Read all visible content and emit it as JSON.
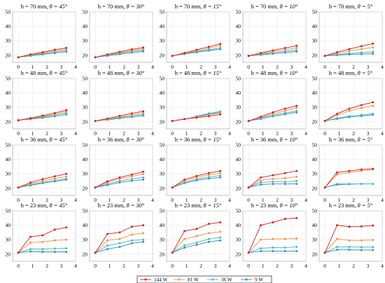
{
  "figure": {
    "series_colors": {
      "144 W": "#d7191c",
      "81 W": "#fd8d3c",
      "36 W": "#41b6c4",
      "9 W": "#2b8cbe"
    }
  },
  "legend": {
    "placement": "bottom-center",
    "items": [
      "144 W",
      "81 W",
      "36 W",
      "9 W"
    ]
  },
  "chart_data": {
    "type": "line",
    "layout": "small-multiples 4 rows x 5 columns",
    "x": [
      0,
      0.85,
      1.7,
      2.55,
      3.35
    ],
    "xlim": [
      -0.4,
      4
    ],
    "ylim": [
      15,
      50
    ],
    "xticks": [
      0,
      1,
      2,
      3,
      4
    ],
    "yticks": [
      20,
      30,
      40,
      50
    ],
    "grid": true,
    "series_names": [
      "144 W",
      "81 W",
      "36 W",
      "9 W"
    ],
    "panels": [
      {
        "title_h": "h = 70 mm, ",
        "title_theta": "θ = 45°",
        "series": [
          {
            "name": "144 W",
            "values": [
              18.5,
              20.5,
              22,
              23.8,
              25
            ]
          },
          {
            "name": "81 W",
            "values": [
              18.5,
              20.2,
              21.5,
              23,
              24
            ]
          },
          {
            "name": "36 W",
            "values": [
              18.5,
              19.8,
              21,
              22.3,
              23.2
            ]
          },
          {
            "name": "9 W",
            "values": [
              18.5,
              19.5,
              20.5,
              21.5,
              22.3
            ]
          }
        ]
      },
      {
        "title_h": "h = 70 mm, ",
        "title_theta": "θ = 30°",
        "series": [
          {
            "name": "144 W",
            "values": [
              18.5,
              20.5,
              22.3,
              24,
              25.3
            ]
          },
          {
            "name": "81 W",
            "values": [
              18.5,
              20.2,
              21.8,
              23.2,
              24.3
            ]
          },
          {
            "name": "36 W",
            "values": [
              18.5,
              19.8,
              21.2,
              22.5,
              23.5
            ]
          },
          {
            "name": "9 W",
            "values": [
              18.5,
              19.5,
              20.7,
              21.8,
              22.6
            ]
          }
        ]
      },
      {
        "title_h": "h = 70 mm, ",
        "title_theta": "θ = 15°",
        "series": [
          {
            "name": "144 W",
            "values": [
              19.5,
              21.5,
              23.7,
              25.8,
              27.8
            ]
          },
          {
            "name": "81 W",
            "values": [
              19.5,
              21.2,
              23,
              24.8,
              26.5
            ]
          },
          {
            "name": "36 W",
            "values": [
              19.5,
              21,
              22.5,
              23.8,
              25
            ]
          },
          {
            "name": "9 W",
            "values": [
              19.5,
              20.8,
              22,
              23.2,
              24.2
            ]
          }
        ]
      },
      {
        "title_h": "h = 70 mm, ",
        "title_theta": "θ = 10°",
        "series": [
          {
            "name": "144 W",
            "values": [
              19.5,
              21.5,
              23.3,
              25,
              26.5
            ]
          },
          {
            "name": "81 W",
            "values": [
              19.5,
              21,
              22.5,
              23.8,
              25
            ]
          },
          {
            "name": "36 W",
            "values": [
              19.5,
              20.5,
              21.7,
              22.7,
              23.5
            ]
          },
          {
            "name": "9 W",
            "values": [
              19.5,
              20.2,
              21,
              21.8,
              22.5
            ]
          }
        ]
      },
      {
        "title_h": "h = 70 mm, ",
        "title_theta": "θ = 5°",
        "series": [
          {
            "name": "144 W",
            "values": [
              19.5,
              22,
              24.2,
              26.2,
              28
            ]
          },
          {
            "name": "81 W",
            "values": [
              19.5,
              21.3,
              22.8,
              24.2,
              25.3
            ]
          },
          {
            "name": "36 W",
            "values": [
              19.5,
              20.5,
              21.2,
              21.8,
              22.3
            ]
          },
          {
            "name": "9 W",
            "values": [
              19.5,
              20,
              20.5,
              20.8,
              21
            ]
          }
        ]
      },
      {
        "title_h": "h = 48 mm, ",
        "title_theta": "θ = 45°",
        "series": [
          {
            "name": "144 W",
            "values": [
              21,
              22.5,
              24.2,
              26,
              28
            ]
          },
          {
            "name": "81 W",
            "values": [
              21,
              22.2,
              23.7,
              25.2,
              27
            ]
          },
          {
            "name": "36 W",
            "values": [
              21,
              22,
              23.2,
              24.5,
              26
            ]
          },
          {
            "name": "9 W",
            "values": [
              21,
              21.7,
              22.7,
              23.8,
              25
            ]
          }
        ]
      },
      {
        "title_h": "h = 48 mm, ",
        "title_theta": "θ = 30°",
        "series": [
          {
            "name": "144 W",
            "values": [
              20.5,
              22.2,
              24,
              25.8,
              27.2
            ]
          },
          {
            "name": "81 W",
            "values": [
              20.5,
              21.8,
              23.3,
              24.8,
              26
            ]
          },
          {
            "name": "36 W",
            "values": [
              20.5,
              21.5,
              22.8,
              24,
              25
            ]
          },
          {
            "name": "9 W",
            "values": [
              20.5,
              21.3,
              22.3,
              23.3,
              24.2
            ]
          }
        ]
      },
      {
        "title_h": "h = 48 mm, ",
        "title_theta": "θ = 15°",
        "series": [
          {
            "name": "144 W",
            "values": [
              20.5,
              21.8,
              22.8,
              23.8,
              25
            ]
          },
          {
            "name": "81 W",
            "values": [
              20.5,
              21.8,
              23.3,
              24.5,
              26
            ]
          },
          {
            "name": "36 W",
            "values": [
              20.5,
              21.8,
              23.8,
              25.8,
              27.2
            ]
          },
          {
            "name": "9 W",
            "values": [
              20.5,
              21.8,
              23.5,
              25.2,
              26.5
            ]
          }
        ]
      },
      {
        "title_h": "h = 48 mm, ",
        "title_theta": "θ = 10°",
        "series": [
          {
            "name": "144 W",
            "values": [
              20.5,
              23.5,
              26.5,
              29,
              31
            ]
          },
          {
            "name": "81 W",
            "values": [
              20.5,
              23,
              25.5,
              27.5,
              29.5
            ]
          },
          {
            "name": "36 W",
            "values": [
              20.5,
              22.5,
              24.5,
              26,
              27.5
            ]
          },
          {
            "name": "9 W",
            "values": [
              20.5,
              22,
              23.8,
              25.2,
              26.5
            ]
          }
        ]
      },
      {
        "title_h": "h = 48 mm, ",
        "title_theta": "θ = 5°",
        "series": [
          {
            "name": "144 W",
            "values": [
              20.5,
              25.5,
              29,
              31.5,
              33.5
            ]
          },
          {
            "name": "81 W",
            "values": [
              20.5,
              24.5,
              27.5,
              29.5,
              31
            ]
          },
          {
            "name": "36 W",
            "values": [
              20.5,
              22.5,
              23.8,
              24.8,
              25.5
            ]
          },
          {
            "name": "9 W",
            "values": [
              20.5,
              22,
              23.2,
              24,
              24.8
            ]
          }
        ]
      },
      {
        "title_h": "h = 36 mm, ",
        "title_theta": "θ = 45°",
        "series": [
          {
            "name": "144 W",
            "values": [
              20.5,
              24,
              26.3,
              28.3,
              30
            ]
          },
          {
            "name": "81 W",
            "values": [
              20.5,
              23.2,
              25,
              26.8,
              28
            ]
          },
          {
            "name": "36 W",
            "values": [
              20.5,
              22.5,
              24,
              25.5,
              26.5
            ]
          },
          {
            "name": "9 W",
            "values": [
              20.5,
              22,
              23.5,
              24.8,
              26
            ]
          }
        ]
      },
      {
        "title_h": "h = 36 mm, ",
        "title_theta": "θ = 30°",
        "series": [
          {
            "name": "144 W",
            "values": [
              20.5,
              24.8,
              27.5,
              29.5,
              31.5
            ]
          },
          {
            "name": "81 W",
            "values": [
              20.5,
              24,
              26.5,
              28.3,
              29.8
            ]
          },
          {
            "name": "36 W",
            "values": [
              20.5,
              23,
              25,
              26.5,
              27.5
            ]
          },
          {
            "name": "9 W",
            "values": [
              20.5,
              22.2,
              24,
              25.2,
              26
            ]
          }
        ]
      },
      {
        "title_h": "h = 36 mm, ",
        "title_theta": "θ = 15°",
        "series": [
          {
            "name": "144 W",
            "values": [
              20.5,
              26,
              28.5,
              30.5,
              32
            ]
          },
          {
            "name": "81 W",
            "values": [
              20.5,
              25,
              27.5,
              29.3,
              30.5
            ]
          },
          {
            "name": "36 W",
            "values": [
              20.5,
              24,
              26.3,
              27.8,
              28.8
            ]
          },
          {
            "name": "9 W",
            "values": [
              20.5,
              23.5,
              25.5,
              26.8,
              27.5
            ]
          }
        ]
      },
      {
        "title_h": "h = 36 mm, ",
        "title_theta": "θ = 10°",
        "series": [
          {
            "name": "144 W",
            "values": [
              20.5,
              27.5,
              29,
              30.5,
              32
            ]
          },
          {
            "name": "81 W",
            "values": [
              20.5,
              25.5,
              26.5,
              27,
              28
            ]
          },
          {
            "name": "36 W",
            "values": [
              20.5,
              24,
              24.5,
              24.5,
              25
            ]
          },
          {
            "name": "9 W",
            "values": [
              20.5,
              22.5,
              23,
              23,
              23
            ]
          }
        ]
      },
      {
        "title_h": "h = 36 mm, ",
        "title_theta": "θ = 5°",
        "series": [
          {
            "name": "144 W",
            "values": [
              20.5,
              31,
              32,
              33,
              33.5
            ]
          },
          {
            "name": "81 W",
            "values": [
              20.5,
              29.5,
              31,
              32,
              33
            ]
          },
          {
            "name": "36 W",
            "values": [
              20.5,
              23,
              23,
              23,
              23
            ]
          },
          {
            "name": "9 W",
            "values": [
              20.5,
              22.5,
              22.8,
              23,
              23
            ]
          }
        ]
      },
      {
        "title_h": "h = 23 mm, ",
        "title_theta": "θ = 45°",
        "series": [
          {
            "name": "144 W",
            "values": [
              21,
              32,
              33,
              37,
              38.5
            ]
          },
          {
            "name": "81 W",
            "values": [
              21,
              28,
              28.5,
              29.5,
              30
            ]
          },
          {
            "name": "36 W",
            "values": [
              21,
              23.5,
              23.5,
              23.8,
              24
            ]
          },
          {
            "name": "9 W",
            "values": [
              21,
              21.8,
              21.5,
              21.5,
              21.5
            ]
          }
        ]
      },
      {
        "title_h": "h = 23 mm, ",
        "title_theta": "θ = 30°",
        "series": [
          {
            "name": "144 W",
            "values": [
              21,
              34,
              35,
              39,
              40
            ]
          },
          {
            "name": "81 W",
            "values": [
              21,
              29.5,
              30.5,
              33.5,
              34.5
            ]
          },
          {
            "name": "36 W",
            "values": [
              21,
              26,
              27.5,
              29.5,
              30
            ]
          },
          {
            "name": "9 W",
            "values": [
              21,
              23.5,
              25,
              27.5,
              28.5
            ]
          }
        ]
      },
      {
        "title_h": "h = 23 mm, ",
        "title_theta": "θ = 15°",
        "series": [
          {
            "name": "144 W",
            "values": [
              21,
              36,
              37.5,
              41,
              42
            ]
          },
          {
            "name": "81 W",
            "values": [
              21,
              30.5,
              32.5,
              34.5,
              35.5
            ]
          },
          {
            "name": "36 W",
            "values": [
              21,
              26,
              28,
              30.5,
              31.5
            ]
          },
          {
            "name": "9 W",
            "values": [
              21,
              24.5,
              26.5,
              28.5,
              29.5
            ]
          }
        ]
      },
      {
        "title_h": "h = 23 mm, ",
        "title_theta": "θ = 10°",
        "series": [
          {
            "name": "144 W",
            "values": [
              21,
              40,
              42,
              44.5,
              45
            ]
          },
          {
            "name": "81 W",
            "values": [
              21,
              30,
              30.5,
              30.5,
              30.8
            ]
          },
          {
            "name": "36 W",
            "values": [
              21,
              24,
              24.5,
              24.5,
              25
            ]
          },
          {
            "name": "9 W",
            "values": [
              21,
              22,
              22,
              22,
              22
            ]
          }
        ]
      },
      {
        "title_h": "h = 23 mm, ",
        "title_theta": "θ = 5°",
        "series": [
          {
            "name": "144 W",
            "values": [
              21,
              40,
              39,
              39.2,
              39.8
            ]
          },
          {
            "name": "81 W",
            "values": [
              21,
              30.5,
              29.5,
              29.5,
              29.8
            ]
          },
          {
            "name": "36 W",
            "values": [
              21,
              25,
              25,
              24.8,
              24.8
            ]
          },
          {
            "name": "9 W",
            "values": [
              21,
              23,
              23,
              22.8,
              22.8
            ]
          }
        ]
      }
    ]
  }
}
